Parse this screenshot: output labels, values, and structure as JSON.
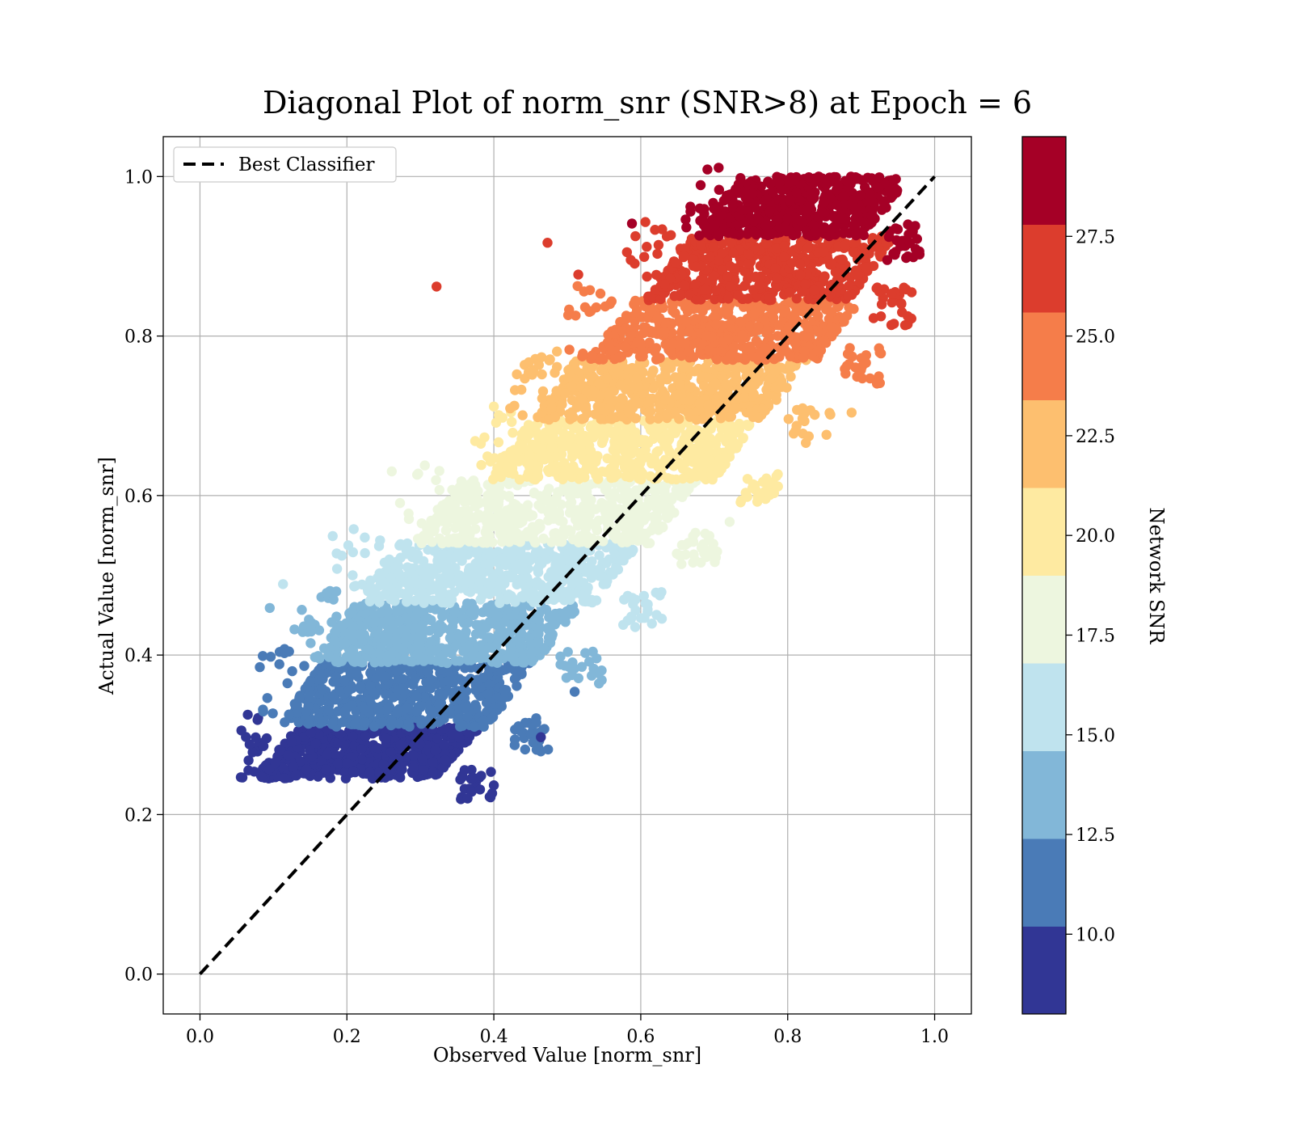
{
  "chart_data": {
    "type": "scatter",
    "title": "Diagonal Plot of norm_snr (SNR>8) at Epoch = 6",
    "xlabel": "Observed Value [norm_snr]",
    "ylabel": "Actual Value [norm_snr]",
    "xlim": [
      -0.05,
      1.05
    ],
    "ylim": [
      -0.05,
      1.05
    ],
    "x_ticks": [
      0.0,
      0.2,
      0.4,
      0.6,
      0.8,
      1.0
    ],
    "y_ticks": [
      0.0,
      0.2,
      0.4,
      0.6,
      0.8,
      1.0
    ],
    "x_tick_labels": [
      "0.0",
      "0.2",
      "0.4",
      "0.6",
      "0.8",
      "1.0"
    ],
    "y_tick_labels": [
      "0.0",
      "0.2",
      "0.4",
      "0.6",
      "0.8",
      "1.0"
    ],
    "grid": true,
    "legend": {
      "placement": "upper-left",
      "entries": [
        "Best Classifier"
      ]
    },
    "reference_line": {
      "name": "Best Classifier",
      "style": "dashed",
      "color": "#000000",
      "x": [
        0.0,
        1.0
      ],
      "y": [
        0.0,
        1.0
      ]
    },
    "colorbar": {
      "label": "Network SNR",
      "range": [
        8,
        30
      ],
      "tick_values": [
        10.0,
        12.5,
        15.0,
        17.5,
        20.0,
        22.5,
        25.0,
        27.5
      ],
      "tick_labels": [
        "10.0",
        "12.5",
        "15.0",
        "17.5",
        "20.0",
        "22.5",
        "25.0",
        "27.5"
      ],
      "colors": [
        "#313695",
        "#4a7bb7",
        "#82b7d8",
        "#bfe3ee",
        "#edf6df",
        "#feeaa1",
        "#fdbf6f",
        "#f57d4a",
        "#dc3d2d",
        "#a50026"
      ]
    },
    "scatter_bands": [
      {
        "color": "#313695",
        "y_range": [
          0.245,
          0.31
        ],
        "x_range": [
          0.055,
          0.4
        ]
      },
      {
        "color": "#4a7bb7",
        "y_range": [
          0.31,
          0.39
        ],
        "x_range": [
          0.08,
          0.48
        ]
      },
      {
        "color": "#82b7d8",
        "y_range": [
          0.39,
          0.465
        ],
        "x_range": [
          0.12,
          0.55
        ]
      },
      {
        "color": "#bfe3ee",
        "y_range": [
          0.465,
          0.54
        ],
        "x_range": [
          0.18,
          0.63
        ]
      },
      {
        "color": "#edf6df",
        "y_range": [
          0.54,
          0.62
        ],
        "x_range": [
          0.26,
          0.71
        ]
      },
      {
        "color": "#feeaa1",
        "y_range": [
          0.62,
          0.695
        ],
        "x_range": [
          0.36,
          0.79
        ]
      },
      {
        "color": "#fdbf6f",
        "y_range": [
          0.695,
          0.77
        ],
        "x_range": [
          0.42,
          0.86
        ]
      },
      {
        "color": "#f57d4a",
        "y_range": [
          0.77,
          0.845
        ],
        "x_range": [
          0.5,
          0.93
        ]
      },
      {
        "color": "#dc3d2d",
        "y_range": [
          0.845,
          0.925
        ],
        "x_range": [
          0.58,
          0.97
        ]
      },
      {
        "color": "#a50026",
        "y_range": [
          0.925,
          1.0
        ],
        "x_range": [
          0.66,
          0.98
        ]
      }
    ],
    "outliers": [
      {
        "x": 0.322,
        "y": 0.862,
        "color": "#dc3d2d"
      },
      {
        "x": 0.473,
        "y": 0.917,
        "color": "#dc3d2d"
      },
      {
        "x": 0.588,
        "y": 0.941,
        "color": "#a50026"
      },
      {
        "x": 0.515,
        "y": 0.877,
        "color": "#dc3d2d"
      },
      {
        "x": 0.464,
        "y": 0.297,
        "color": "#313695"
      },
      {
        "x": 0.51,
        "y": 0.354,
        "color": "#4a7bb7"
      },
      {
        "x": 0.113,
        "y": 0.489,
        "color": "#bfe3ee"
      },
      {
        "x": 0.095,
        "y": 0.459,
        "color": "#82b7d8"
      },
      {
        "x": 0.887,
        "y": 0.704,
        "color": "#fdbf6f"
      },
      {
        "x": 0.721,
        "y": 0.567,
        "color": "#edf6df"
      }
    ]
  }
}
